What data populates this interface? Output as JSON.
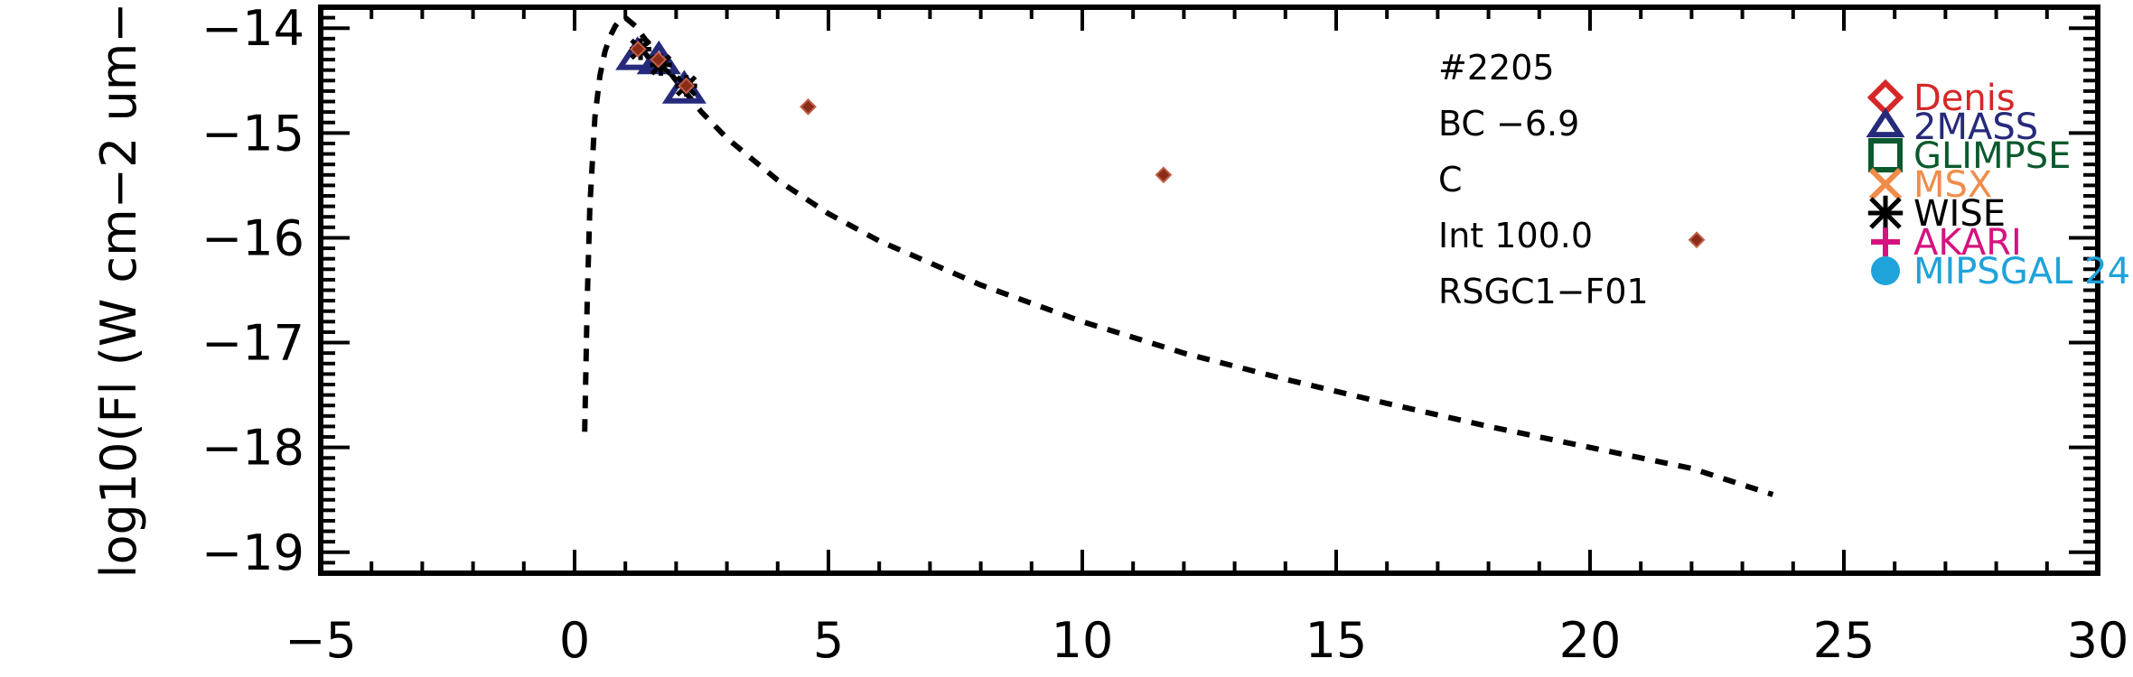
{
  "chart_data": {
    "type": "scatter",
    "title": "",
    "xlabel": "",
    "ylabel": "log10(Fl (W cm−2 um−",
    "xlim": [
      -5,
      30
    ],
    "ylim": [
      -19.2,
      -13.8
    ],
    "x_ticks": [
      -5,
      0,
      5,
      10,
      15,
      20,
      25,
      30
    ],
    "x_tick_labels": [
      "−5",
      "0",
      "5",
      "10",
      "15",
      "20",
      "25",
      "30"
    ],
    "y_ticks": [
      -19,
      -18,
      -17,
      -16,
      -15,
      -14
    ],
    "y_tick_labels": [
      "−19",
      "−18",
      "−17",
      "−16",
      "−15",
      "−14"
    ],
    "grid": false,
    "annotations": [
      "#2205",
      "BC −6.9",
      "C",
      "Int 100.0",
      "RSGC1−F01"
    ],
    "legend": {
      "placement": "right",
      "entries": [
        {
          "label": "Denis",
          "marker": "diamond",
          "color": "#d62728"
        },
        {
          "label": "2MASS",
          "marker": "triangle",
          "color": "#262a7a"
        },
        {
          "label": "GLIMPSE",
          "marker": "square",
          "color": "#0b5a2e"
        },
        {
          "label": "MSX",
          "marker": "x",
          "color": "#f08c4a"
        },
        {
          "label": "WISE",
          "marker": "asterisk",
          "color": "#000000"
        },
        {
          "label": "AKARI",
          "marker": "plus",
          "color": "#d6127f"
        },
        {
          "label": "MIPSGAL 24",
          "marker": "circle",
          "color": "#1ea3db"
        }
      ]
    },
    "series": [
      {
        "name": "2MASS",
        "marker": "triangle",
        "color": "#262a7a",
        "x": [
          1.24,
          1.66,
          2.16
        ],
        "y": [
          -14.28,
          -14.32,
          -14.6
        ]
      },
      {
        "name": "WISE",
        "marker": "asterisk",
        "color": "#000000",
        "x": [
          1.3,
          1.7,
          2.2
        ],
        "y": [
          -14.2,
          -14.35,
          -14.55
        ]
      },
      {
        "marker": "diamond-small",
        "color": "#8b2c18",
        "x": [
          1.25,
          1.65,
          2.2,
          4.6,
          11.6,
          22.1
        ],
        "y": [
          -14.2,
          -14.3,
          -14.55,
          -14.75,
          -15.4,
          -16.02
        ]
      },
      {
        "marker": "dashed-line",
        "color": "#000000",
        "x": [
          0.2,
          0.25,
          0.3,
          0.4,
          0.5,
          0.6,
          0.7,
          0.8,
          0.9,
          1.0,
          1.2,
          1.5,
          2.0,
          2.5,
          3.0,
          4.0,
          5.0,
          6.0,
          8.0,
          10.0,
          12.0,
          14.0,
          16.0,
          18.0,
          20.0,
          22.0,
          23.6
        ],
        "y": [
          -17.85,
          -16.6,
          -15.7,
          -14.85,
          -14.45,
          -14.22,
          -14.08,
          -13.98,
          -13.92,
          -13.9,
          -13.98,
          -14.18,
          -14.5,
          -14.8,
          -15.05,
          -15.45,
          -15.77,
          -16.03,
          -16.45,
          -16.8,
          -17.1,
          -17.35,
          -17.58,
          -17.8,
          -18.0,
          -18.2,
          -18.45
        ]
      }
    ]
  }
}
